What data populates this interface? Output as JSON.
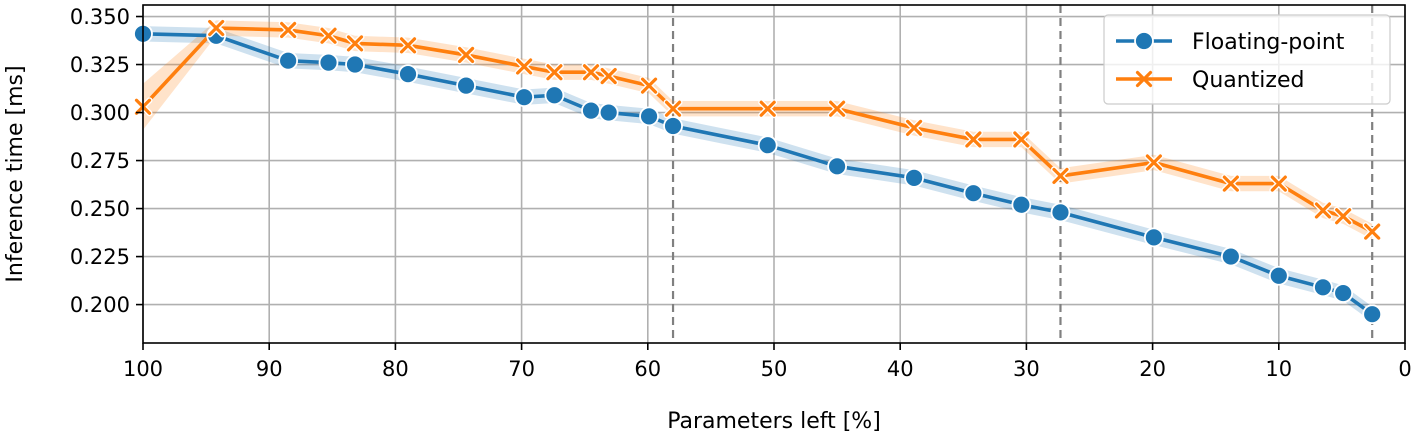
{
  "chart_data": {
    "type": "line",
    "xlabel": "Parameters left [%]",
    "ylabel": "Inference time [ms]",
    "xlim": [
      100,
      0
    ],
    "ylim": [
      0.18,
      0.356
    ],
    "x_inverted": true,
    "xticks": [
      100,
      90,
      80,
      70,
      60,
      50,
      40,
      30,
      20,
      10,
      0
    ],
    "yticks": [
      0.2,
      0.225,
      0.25,
      0.275,
      0.3,
      0.325,
      0.35
    ],
    "grid": true,
    "legend_position": "top-right",
    "vertical_reference_lines": [
      58,
      27.3,
      2.6
    ],
    "series": [
      {
        "name": "Floating-point",
        "color": "#1f77b4",
        "marker": "circle",
        "x": [
          100,
          94.2,
          88.5,
          85.3,
          83.2,
          79.0,
          74.4,
          69.8,
          67.4,
          64.5,
          63.1,
          59.9,
          58.0,
          50.5,
          45.0,
          38.9,
          34.2,
          30.4,
          27.3,
          19.9,
          13.8,
          10.0,
          6.5,
          4.9,
          2.6
        ],
        "y": [
          0.341,
          0.34,
          0.327,
          0.326,
          0.325,
          0.32,
          0.314,
          0.308,
          0.309,
          0.301,
          0.3,
          0.298,
          0.293,
          0.283,
          0.272,
          0.266,
          0.258,
          0.252,
          0.248,
          0.235,
          0.225,
          0.215,
          0.209,
          0.206,
          0.195
        ],
        "band": [
          0.004,
          0.004,
          0.004,
          0.004,
          0.004,
          0.004,
          0.004,
          0.004,
          0.004,
          0.004,
          0.004,
          0.004,
          0.004,
          0.004,
          0.004,
          0.004,
          0.004,
          0.004,
          0.004,
          0.004,
          0.004,
          0.004,
          0.004,
          0.004,
          0.004
        ]
      },
      {
        "name": "Quantized",
        "color": "#ff7f0e",
        "marker": "x",
        "x": [
          100,
          94.2,
          88.5,
          85.3,
          83.2,
          79.0,
          74.4,
          69.8,
          67.4,
          64.5,
          63.1,
          59.9,
          58.0,
          50.5,
          45.0,
          38.9,
          34.2,
          30.4,
          27.3,
          19.9,
          13.8,
          10.0,
          6.5,
          4.9,
          2.6
        ],
        "y": [
          0.303,
          0.344,
          0.343,
          0.34,
          0.336,
          0.335,
          0.33,
          0.324,
          0.321,
          0.321,
          0.319,
          0.314,
          0.302,
          0.302,
          0.302,
          0.292,
          0.286,
          0.286,
          0.267,
          0.274,
          0.263,
          0.263,
          0.249,
          0.246,
          0.238
        ],
        "band": [
          0.012,
          0.004,
          0.004,
          0.004,
          0.004,
          0.004,
          0.004,
          0.004,
          0.004,
          0.004,
          0.004,
          0.004,
          0.004,
          0.004,
          0.004,
          0.004,
          0.004,
          0.004,
          0.004,
          0.004,
          0.004,
          0.004,
          0.004,
          0.004,
          0.004
        ]
      }
    ]
  }
}
